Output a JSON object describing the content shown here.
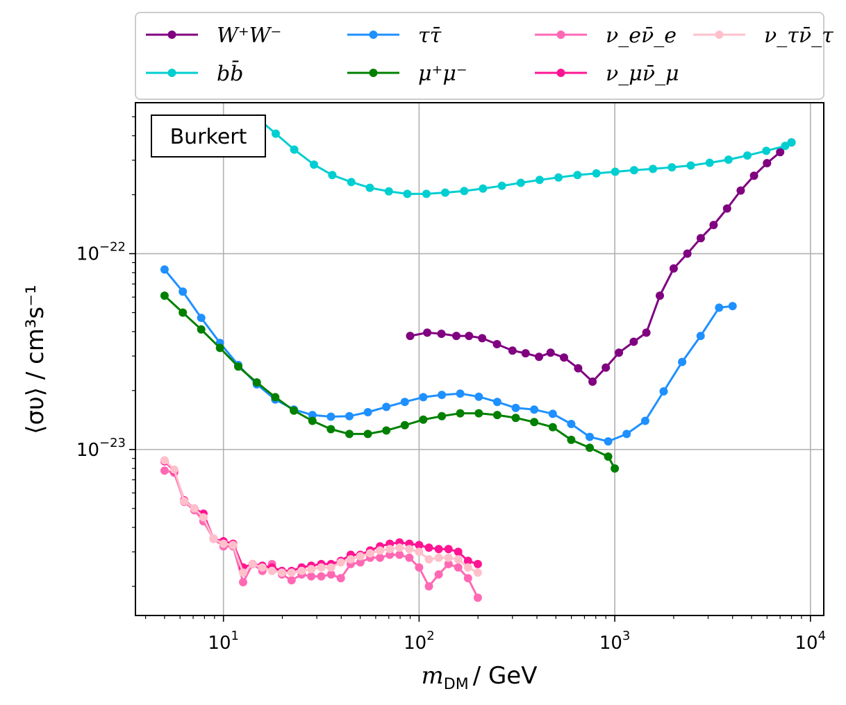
{
  "chart_data": {
    "type": "line",
    "xscale": "log",
    "yscale": "log",
    "xlim": [
      3.55,
      11700
    ],
    "ylim": [
      1.42e-24,
      5.9e-22
    ],
    "grid": true,
    "xlabel_main": "m",
    "xlabel_sub": "DM",
    "xlabel_unit": "/ GeV",
    "ylabel": "⟨συ⟩ / cm³s⁻¹",
    "x_tick_labels": [
      {
        "value": 10,
        "base": "10",
        "exp": "1"
      },
      {
        "value": 100,
        "base": "10",
        "exp": "2"
      },
      {
        "value": 1000,
        "base": "10",
        "exp": "3"
      },
      {
        "value": 10000,
        "base": "10",
        "exp": "4"
      }
    ],
    "y_tick_labels": [
      {
        "value": 1e-23,
        "base": "10",
        "exp": "−23"
      },
      {
        "value": 1e-22,
        "base": "10",
        "exp": "−22"
      }
    ],
    "annotation": "Burkert",
    "legend_location": "top, outside, 4 columns",
    "series": [
      {
        "name": "W⁺W⁻",
        "color": "#800080",
        "x": [
          90,
          110,
          130,
          155,
          180,
          210,
          250,
          300,
          350,
          410,
          470,
          550,
          650,
          770,
          900,
          1050,
          1250,
          1450,
          1700,
          2000,
          2350,
          2750,
          3200,
          3750,
          4400,
          5150,
          6000,
          7000,
          8000
        ],
        "y": [
          3.8e-23,
          3.95e-23,
          3.9e-23,
          3.8e-23,
          3.8e-23,
          3.7e-23,
          3.45e-23,
          3.2e-23,
          3.1e-23,
          2.97e-23,
          3.12e-23,
          2.95e-23,
          2.6e-23,
          2.22e-23,
          2.62e-23,
          3.12e-23,
          3.55e-23,
          3.95e-23,
          6.1e-23,
          8.4e-23,
          1e-22,
          1.2e-22,
          1.4e-22,
          1.7e-22,
          2.1e-22,
          2.5e-22,
          2.9e-22,
          3.3e-22,
          3.7e-22
        ]
      },
      {
        "name": "bb̄",
        "color": "#00CED1",
        "x": [
          15,
          18.5,
          23,
          29,
          36,
          45,
          56,
          70,
          87,
          109,
          136,
          170,
          212,
          265,
          331,
          413,
          516,
          645,
          805,
          1005,
          1255,
          1568,
          1958,
          2445,
          3054,
          3813,
          4762,
          5946,
          7425,
          8000
        ],
        "y": [
          4.9e-22,
          4.1e-22,
          3.4e-22,
          2.85e-22,
          2.52e-22,
          2.32e-22,
          2.17e-22,
          2.08e-22,
          2.02e-22,
          2.02e-22,
          2.05e-22,
          2.09e-22,
          2.15e-22,
          2.22e-22,
          2.3e-22,
          2.38e-22,
          2.45e-22,
          2.52e-22,
          2.57e-22,
          2.62e-22,
          2.67e-22,
          2.71e-22,
          2.76e-22,
          2.82e-22,
          2.91e-22,
          3.02e-22,
          3.17e-22,
          3.35e-22,
          3.55e-22,
          3.7e-22
        ]
      },
      {
        "name": "ττ̄",
        "color": "#1E90FF",
        "x": [
          5,
          6.2,
          7.7,
          9.6,
          11.9,
          14.8,
          18.4,
          22.9,
          28.5,
          35.4,
          44,
          54.7,
          68,
          84.5,
          105,
          130.6,
          162.3,
          201.8,
          250.8,
          311.8,
          387.6,
          481.8,
          598.9,
          744.5,
          925.4,
          1150,
          1430,
          1778,
          2210,
          2747,
          3414,
          4000
        ],
        "y": [
          8.3e-23,
          6.4e-23,
          4.7e-23,
          3.5e-23,
          2.7e-23,
          2.15e-23,
          1.8e-23,
          1.6e-23,
          1.5e-23,
          1.47e-23,
          1.48e-23,
          1.55e-23,
          1.65e-23,
          1.75e-23,
          1.85e-23,
          1.9e-23,
          1.93e-23,
          1.86e-23,
          1.75e-23,
          1.63e-23,
          1.6e-23,
          1.52e-23,
          1.35e-23,
          1.16e-23,
          1.1e-23,
          1.2e-23,
          1.4e-23,
          1.98e-23,
          2.8e-23,
          3.8e-23,
          5.3e-23,
          5.4e-23
        ]
      },
      {
        "name": "μ⁺μ⁻",
        "color": "#008000",
        "x": [
          5,
          6.2,
          7.7,
          9.6,
          11.9,
          14.8,
          18.4,
          22.9,
          28.5,
          35.4,
          44,
          54.7,
          68,
          84.5,
          105,
          130.6,
          162.3,
          201.8,
          250.8,
          311.8,
          387.6,
          481.8,
          598.9,
          744.5,
          925.4,
          1000
        ],
        "y": [
          6.1e-23,
          5e-23,
          4.1e-23,
          3.3e-23,
          2.65e-23,
          2.2e-23,
          1.85e-23,
          1.58e-23,
          1.4e-23,
          1.27e-23,
          1.2e-23,
          1.2e-23,
          1.25e-23,
          1.33e-23,
          1.42e-23,
          1.48e-23,
          1.53e-23,
          1.53e-23,
          1.5e-23,
          1.45e-23,
          1.38e-23,
          1.3e-23,
          1.12e-23,
          1.02e-23,
          9.2e-24,
          8e-24
        ]
      },
      {
        "name": "ν_eν̄_e",
        "color": "#FF69B4",
        "x": [
          5,
          5.6,
          6.3,
          7.1,
          7.9,
          8.9,
          10,
          11.2,
          12.6,
          14.1,
          15.8,
          17.7,
          19.9,
          22.3,
          25.1,
          28.1,
          31.6,
          35.5,
          39.8,
          44.7,
          50.1,
          56.2,
          63.1,
          70.8,
          79.4,
          89.1,
          100,
          112.2,
          125.9,
          141.3,
          158.5,
          177.8,
          199.5
        ],
        "y": [
          7.8e-24,
          7.6e-24,
          5.4e-24,
          4.9e-24,
          4.3e-24,
          3.5e-24,
          3.2e-24,
          3.2e-24,
          2.1e-24,
          2.6e-24,
          2.4e-24,
          2.6e-24,
          2.3e-24,
          2.15e-24,
          2.3e-24,
          2.25e-24,
          2.25e-24,
          2.3e-24,
          2.2e-24,
          2.6e-24,
          2.65e-24,
          2.8e-24,
          2.8e-24,
          2.9e-24,
          2.9e-24,
          2.8e-24,
          2.5e-24,
          2e-24,
          2.3e-24,
          2.6e-24,
          2.5e-24,
          2.2e-24,
          1.75e-24
        ]
      },
      {
        "name": "ν_μν̄_μ",
        "color": "#FF1493",
        "x": [
          5,
          5.6,
          6.3,
          7.1,
          7.9,
          8.9,
          10,
          11.2,
          12.6,
          14.1,
          15.8,
          17.7,
          19.9,
          22.3,
          25.1,
          28.1,
          31.6,
          35.5,
          39.8,
          44.7,
          50.1,
          56.2,
          63.1,
          70.8,
          79.4,
          89.1,
          100,
          112.2,
          125.9,
          141.3,
          158.5,
          177.8,
          199.5
        ],
        "y": [
          8.7e-24,
          7.8e-24,
          5.5e-24,
          5e-24,
          4.7e-24,
          3.5e-24,
          3.4e-24,
          3.3e-24,
          2.5e-24,
          2.6e-24,
          2.55e-24,
          2.5e-24,
          2.4e-24,
          2.4e-24,
          2.5e-24,
          2.55e-24,
          2.6e-24,
          2.6e-24,
          2.7e-24,
          2.9e-24,
          2.9e-24,
          3.05e-24,
          3.2e-24,
          3.3e-24,
          3.35e-24,
          3.3e-24,
          3.25e-24,
          3.15e-24,
          3.1e-24,
          3.1e-24,
          3e-24,
          2.7e-24,
          2.6e-24
        ]
      },
      {
        "name": "ν_τν̄_τ",
        "color": "#FFC0CB",
        "x": [
          5,
          5.6,
          6.3,
          7.1,
          7.9,
          8.9,
          10,
          11.2,
          12.6,
          14.1,
          15.8,
          17.7,
          19.9,
          22.3,
          25.1,
          28.1,
          31.6,
          35.5,
          39.8,
          44.7,
          50.1,
          56.2,
          63.1,
          70.8,
          79.4,
          89.1,
          100,
          112.2,
          125.9,
          141.3,
          158.5,
          177.8,
          199.5
        ],
        "y": [
          8.8e-24,
          7.9e-24,
          5.45e-24,
          5e-24,
          4.5e-24,
          3.5e-24,
          3.3e-24,
          3.25e-24,
          2.35e-24,
          2.6e-24,
          2.5e-24,
          2.4e-24,
          2.35e-24,
          2.35e-24,
          2.4e-24,
          2.45e-24,
          2.5e-24,
          2.5e-24,
          2.65e-24,
          2.75e-24,
          2.85e-24,
          2.95e-24,
          3.05e-24,
          3.1e-24,
          3.15e-24,
          3.1e-24,
          3e-24,
          2.75e-24,
          2.8e-24,
          2.8e-24,
          2.75e-24,
          2.5e-24,
          2.35e-24
        ]
      }
    ]
  }
}
